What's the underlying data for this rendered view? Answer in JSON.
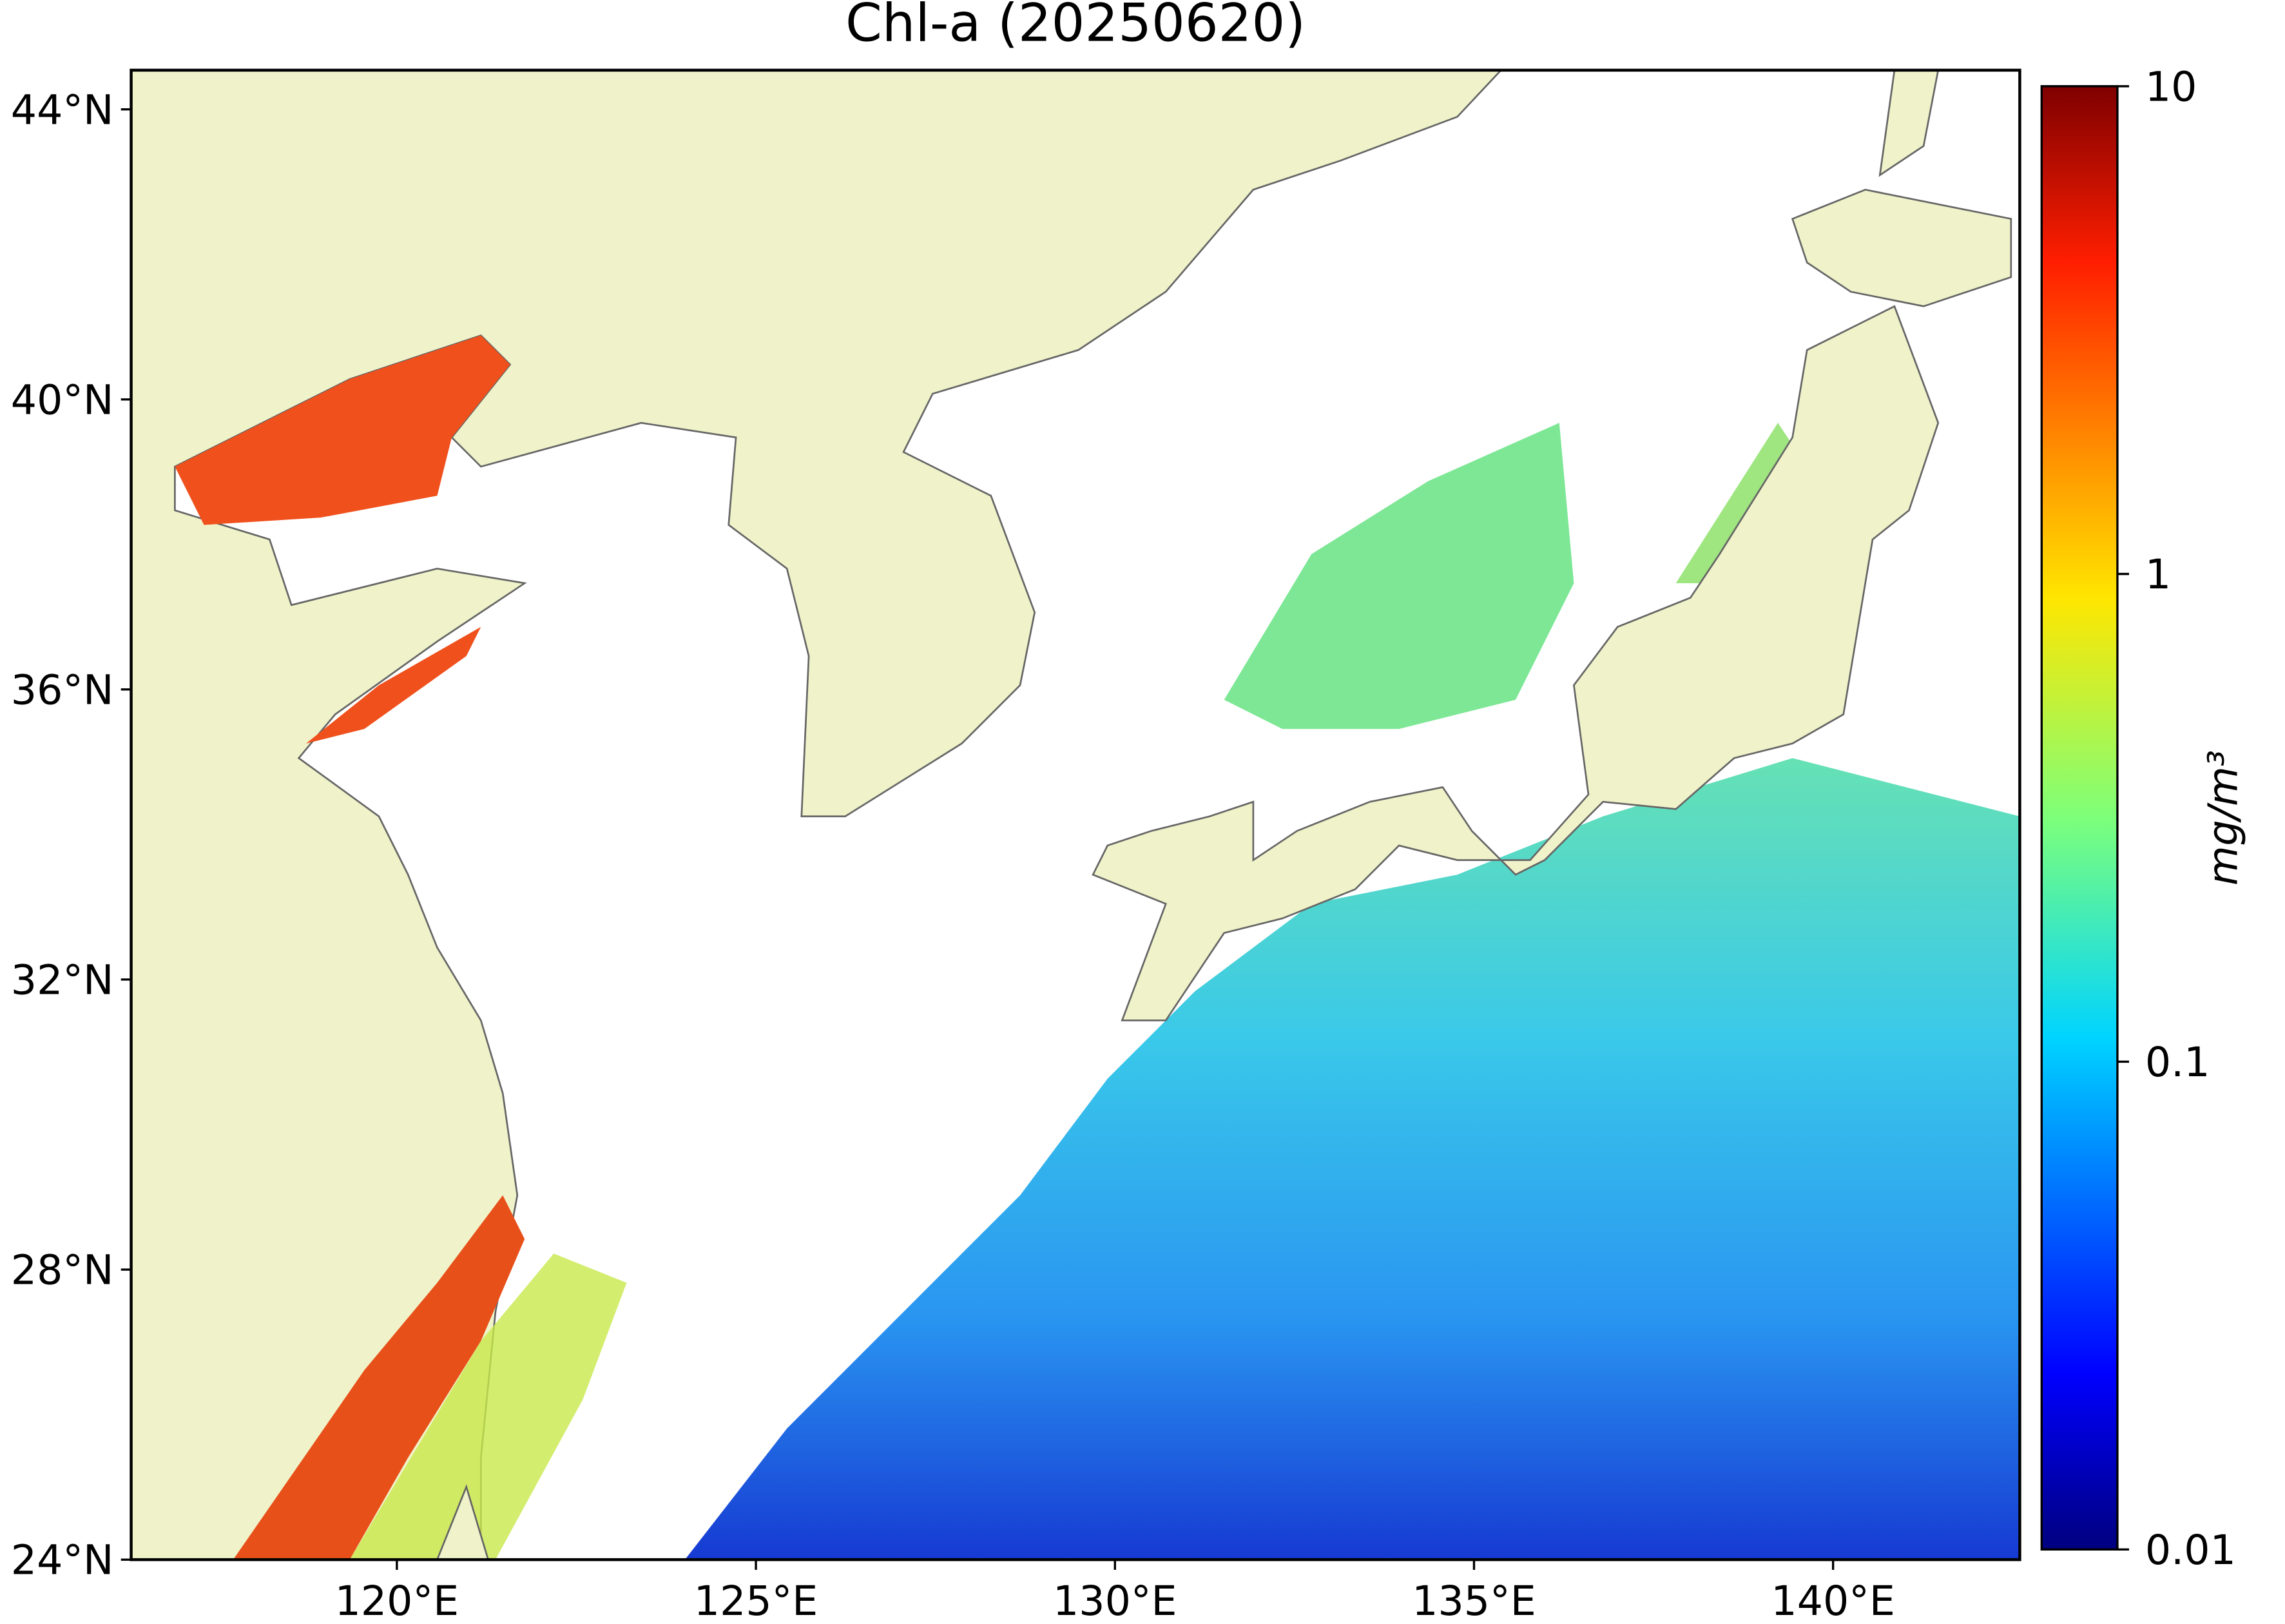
{
  "chart_data": {
    "type": "map",
    "title": "Chl-a (20250620)",
    "xlim": [
      116.3,
      142.6
    ],
    "ylim": [
      24,
      44.54
    ],
    "xticks": [
      {
        "value": 120,
        "label": "120°E"
      },
      {
        "value": 125,
        "label": "125°E"
      },
      {
        "value": 130,
        "label": "130°E"
      },
      {
        "value": 135,
        "label": "135°E"
      },
      {
        "value": 140,
        "label": "140°E"
      }
    ],
    "yticks": [
      {
        "value": 24,
        "label": "24°N"
      },
      {
        "value": 28,
        "label": "28°N"
      },
      {
        "value": 32,
        "label": "32°N"
      },
      {
        "value": 36,
        "label": "36°N"
      },
      {
        "value": 40,
        "label": "40°N"
      },
      {
        "value": 44,
        "label": "44°N"
      }
    ],
    "colorbar": {
      "label": "mg/m³",
      "lim": [
        0.01,
        10
      ],
      "log": true,
      "ticks": [
        0.01,
        0.1,
        1,
        10
      ],
      "colormap": "jet"
    },
    "land_color": "#f0f3c9"
  }
}
